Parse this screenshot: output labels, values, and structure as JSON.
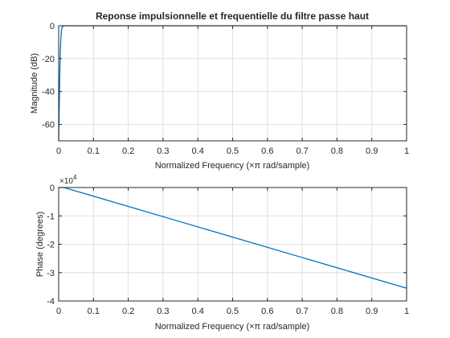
{
  "chart_data": [
    {
      "type": "line",
      "title": "Reponse impulsionnelle et frequentielle du filtre passe haut",
      "xlabel": "Normalized Frequency  (×π rad/sample)",
      "ylabel": "Magnitude (dB)",
      "xlim": [
        0,
        1
      ],
      "ylim": [
        -70,
        0
      ],
      "grid": true,
      "xticks": [
        0,
        0.1,
        0.2,
        0.3,
        0.4,
        0.5,
        0.6,
        0.7,
        0.8,
        0.9,
        1
      ],
      "xtick_labels": [
        "0",
        "0.1",
        "0.2",
        "0.3",
        "0.4",
        "0.5",
        "0.6",
        "0.7",
        "0.8",
        "0.9",
        "1"
      ],
      "yticks": [
        0,
        -20,
        -40,
        -60
      ],
      "ytick_labels": [
        "0",
        "-20",
        "-40",
        "-60"
      ],
      "series": [
        {
          "color": "#0072bd",
          "x": [
            0,
            0.0005,
            0.001,
            0.002,
            0.003,
            0.004,
            0.005,
            0.006,
            0.008,
            0.01,
            0.015,
            1
          ],
          "y": [
            -70,
            -62,
            -58,
            -45,
            -32,
            -22,
            -14,
            -9,
            -3,
            -0.8,
            0,
            0
          ]
        }
      ]
    },
    {
      "type": "line",
      "xlabel": "Normalized Frequency  (×π rad/sample)",
      "ylabel": "Phase (degrees)",
      "multiplier": "×10",
      "multiplier_exp": "4",
      "xlim": [
        0,
        1
      ],
      "ylim": [
        -4,
        0
      ],
      "grid": true,
      "xticks": [
        0,
        0.1,
        0.2,
        0.3,
        0.4,
        0.5,
        0.6,
        0.7,
        0.8,
        0.9,
        1
      ],
      "xtick_labels": [
        "0",
        "0.1",
        "0.2",
        "0.3",
        "0.4",
        "0.5",
        "0.6",
        "0.7",
        "0.8",
        "0.9",
        "1"
      ],
      "yticks": [
        0,
        -1,
        -2,
        -3,
        -4
      ],
      "ytick_labels": [
        "0",
        "-1",
        "-2",
        "-3",
        "-4"
      ],
      "series": [
        {
          "color": "#0072bd",
          "x": [
            0,
            0.008,
            0.015,
            1
          ],
          "y": [
            0.15,
            0.05,
            0.0,
            -3.55
          ]
        }
      ]
    }
  ]
}
